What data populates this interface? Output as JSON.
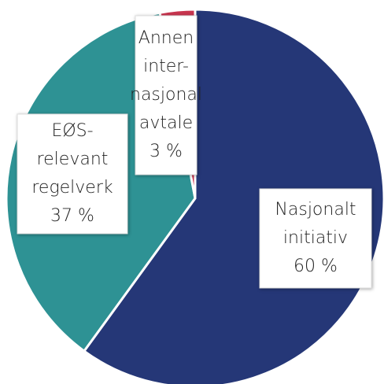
{
  "chart_data": {
    "type": "pie",
    "categories": [
      [
        "Nasjonalt",
        "initiativ"
      ],
      [
        "EØS-",
        "relevant",
        "regelverk"
      ],
      [
        "Annen",
        "inter-",
        "nasjonal",
        "avtale"
      ]
    ],
    "values": [
      60,
      37,
      3
    ],
    "value_labels": [
      "60 %",
      "37 %",
      "3 %"
    ],
    "colors": [
      "#253777",
      "#2e9294",
      "#c8354f"
    ]
  }
}
